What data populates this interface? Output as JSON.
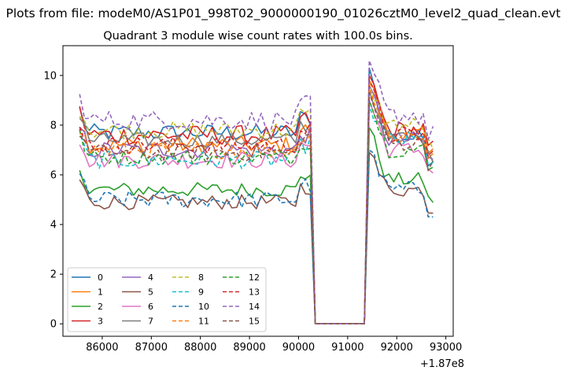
{
  "suptitle": "Plots from file: modeM0/AS1P01_998T02_9000000190_01026cztM0_level2_quad_clean.evt",
  "chart_data": {
    "type": "line",
    "title": "Quadrant 3 module wise count rates with 100.0s bins.",
    "xlabel": "",
    "ylabel": "",
    "x_offset_label": "+1.87e8",
    "xlim": [
      85200,
      93150
    ],
    "ylim": [
      -0.5,
      11.2
    ],
    "xticks": [
      86000,
      87000,
      88000,
      89000,
      90000,
      91000,
      92000,
      93000
    ],
    "yticks": [
      0,
      2,
      4,
      6,
      8,
      10
    ],
    "x_start": 85540,
    "x_step": 100,
    "segments": [
      {
        "name": "first_on",
        "x_from": 85540,
        "x_to": 90240
      },
      {
        "name": "saa_gap",
        "x_from": 90340,
        "x_to": 91340,
        "value": 0
      },
      {
        "name": "second_on",
        "x_from": 91440,
        "x_to": 92740
      }
    ],
    "legend_position": "lower-left",
    "series": [
      {
        "name": "0",
        "color": "#1f77b4",
        "dash": "solid",
        "level1": 7.7,
        "level2": 7.5,
        "peak2": 10.3,
        "noise": 0.35
      },
      {
        "name": "1",
        "color": "#ff7f0e",
        "dash": "solid",
        "level1": 7.2,
        "level2": 7.6,
        "peak2": 9.8,
        "noise": 0.35
      },
      {
        "name": "2",
        "color": "#2ca02c",
        "dash": "solid",
        "level1": 5.4,
        "level2": 5.8,
        "peak2": 7.9,
        "noise": 0.3
      },
      {
        "name": "3",
        "color": "#d62728",
        "dash": "solid",
        "level1": 7.6,
        "level2": 7.8,
        "peak2": 10.0,
        "noise": 0.4
      },
      {
        "name": "4",
        "color": "#9467bd",
        "dash": "solid",
        "level1": 7.0,
        "level2": 7.4,
        "peak2": 9.6,
        "noise": 0.35
      },
      {
        "name": "5",
        "color": "#8c564b",
        "dash": "solid",
        "level1": 4.9,
        "level2": 5.4,
        "peak2": 6.9,
        "noise": 0.3
      },
      {
        "name": "6",
        "color": "#e377c2",
        "dash": "solid",
        "level1": 6.6,
        "level2": 7.0,
        "peak2": 9.0,
        "noise": 0.35
      },
      {
        "name": "7",
        "color": "#7f7f7f",
        "dash": "solid",
        "level1": 7.4,
        "level2": 7.5,
        "peak2": 9.4,
        "noise": 0.3
      },
      {
        "name": "8",
        "color": "#bcbd22",
        "dash": "dashed",
        "level1": 7.8,
        "level2": 8.0,
        "peak2": 9.7,
        "noise": 0.35
      },
      {
        "name": "9",
        "color": "#17becf",
        "dash": "dashed",
        "level1": 6.6,
        "level2": 7.4,
        "peak2": 8.8,
        "noise": 0.35
      },
      {
        "name": "10",
        "color": "#1f77b4",
        "dash": "dashed",
        "level1": 5.0,
        "level2": 5.4,
        "peak2": 7.0,
        "noise": 0.35
      },
      {
        "name": "11",
        "color": "#ff7f0e",
        "dash": "dashed",
        "level1": 7.0,
        "level2": 7.6,
        "peak2": 9.6,
        "noise": 0.35
      },
      {
        "name": "12",
        "color": "#2ca02c",
        "dash": "dashed",
        "level1": 6.7,
        "level2": 7.0,
        "peak2": 9.0,
        "noise": 0.3
      },
      {
        "name": "13",
        "color": "#d62728",
        "dash": "dashed",
        "level1": 7.2,
        "level2": 7.6,
        "peak2": 9.8,
        "noise": 0.35
      },
      {
        "name": "14",
        "color": "#9467bd",
        "dash": "dashed",
        "level1": 8.2,
        "level2": 8.4,
        "peak2": 10.6,
        "noise": 0.4
      },
      {
        "name": "15",
        "color": "#8c564b",
        "dash": "dashed",
        "level1": 6.9,
        "level2": 7.3,
        "peak2": 9.3,
        "noise": 0.35
      }
    ]
  }
}
